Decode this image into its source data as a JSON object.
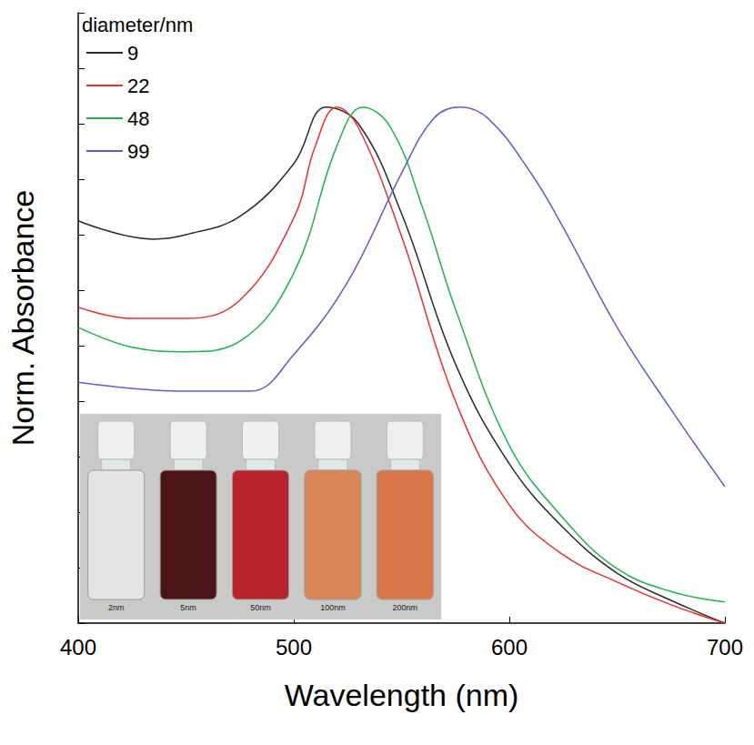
{
  "chart_data": {
    "type": "line",
    "x_label": "Wavelength (nm)",
    "y_label": "Norm. Absorbance",
    "legend_title": "diameter/nm",
    "legend": "upper left",
    "grid": false,
    "tick_labels": "x",
    "xlim": [
      400,
      700
    ],
    "xticks": [
      400,
      500,
      600,
      700
    ],
    "ylim": [
      0,
      1.1
    ],
    "yticks": [
      0,
      0.1,
      0.2,
      0.3,
      0.4,
      0.5,
      0.6,
      0.7,
      0.8,
      0.9,
      1.0,
      1.1
    ],
    "series": [
      {
        "name": "9",
        "color": "#2b2b2b",
        "x": [
          400,
          435,
          450,
          475,
          500,
          515,
          530,
          550,
          575,
          600,
          625,
          650,
          675,
          700
        ],
        "values": [
          0.725,
          0.692,
          0.7,
          0.733,
          0.828,
          0.93,
          0.9,
          0.738,
          0.467,
          0.287,
          0.172,
          0.09,
          0.041,
          0
        ]
      },
      {
        "name": "22",
        "color": "#e8312a",
        "x": [
          400,
          425,
          450,
          475,
          500,
          510,
          520,
          530,
          550,
          575,
          600,
          625,
          650,
          675,
          700
        ],
        "values": [
          0.569,
          0.549,
          0.549,
          0.582,
          0.73,
          0.86,
          0.93,
          0.893,
          0.697,
          0.4,
          0.213,
          0.123,
          0.074,
          0.033,
          0
        ]
      },
      {
        "name": "48",
        "color": "#1fb24a",
        "x": [
          400,
          425,
          450,
          475,
          500,
          520,
          532,
          545,
          560,
          575,
          600,
          625,
          650,
          675,
          700
        ],
        "values": [
          0.533,
          0.497,
          0.489,
          0.508,
          0.631,
          0.86,
          0.93,
          0.893,
          0.746,
          0.566,
          0.32,
          0.189,
          0.098,
          0.057,
          0.038
        ]
      },
      {
        "name": "99",
        "color": "#5a5fd0",
        "x": [
          400,
          450,
          480,
          500,
          525,
          550,
          565,
          577,
          590,
          610,
          625,
          650,
          675,
          700
        ],
        "values": [
          0.434,
          0.418,
          0.418,
          0.484,
          0.615,
          0.811,
          0.91,
          0.93,
          0.91,
          0.811,
          0.713,
          0.533,
          0.385,
          0.246
        ]
      }
    ],
    "inset": {
      "labels": [
        "2nm",
        "5nm",
        "50nm",
        "100nm",
        "200nm"
      ],
      "colors": [
        "#e4e4e2",
        "#4a1418",
        "#b8242e",
        "#d9875a",
        "#d8774a"
      ]
    }
  }
}
